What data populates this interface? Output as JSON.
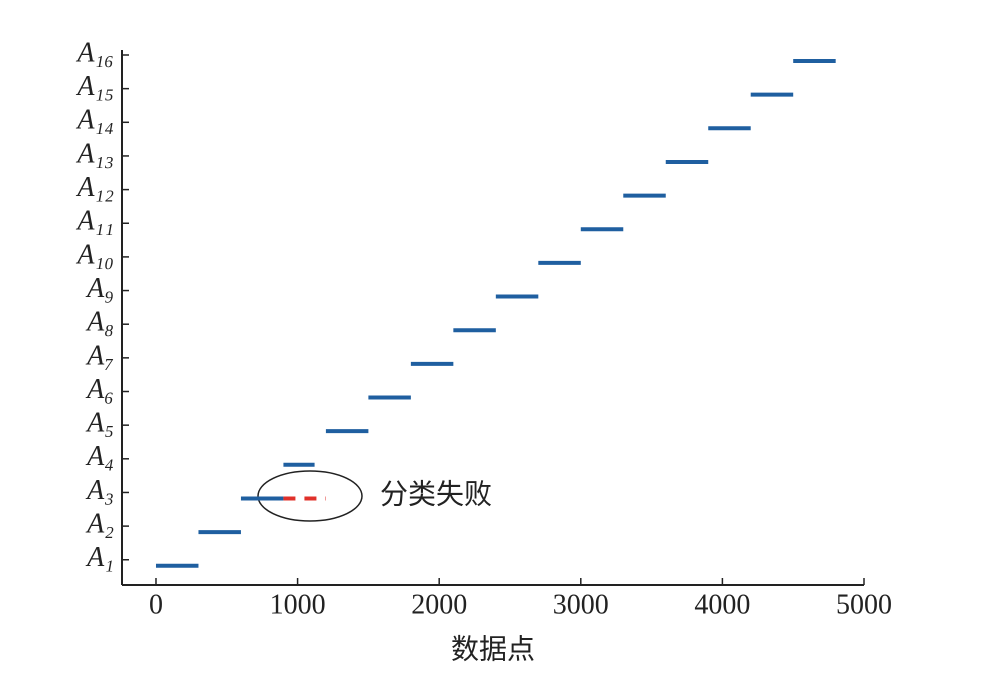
{
  "chart_data": {
    "type": "segments",
    "x_label": "数据点",
    "annotation": "分类失败",
    "xlim": [
      -240,
      5000
    ],
    "xticks": [
      0,
      1000,
      2000,
      3000,
      4000,
      5000
    ],
    "ylim": [
      0.25,
      16
    ],
    "yticks": [
      {
        "value": 1,
        "label": "A₁"
      },
      {
        "value": 2,
        "label": "A₂"
      },
      {
        "value": 3,
        "label": "A₃"
      },
      {
        "value": 4,
        "label": "A₄"
      },
      {
        "value": 5,
        "label": "A₅"
      },
      {
        "value": 6,
        "label": "A₆"
      },
      {
        "value": 7,
        "label": "A₇"
      },
      {
        "value": 8,
        "label": "A₈"
      },
      {
        "value": 9,
        "label": "A₉"
      },
      {
        "value": 10,
        "label": "A₁₀"
      },
      {
        "value": 11,
        "label": "A₁₁"
      },
      {
        "value": 12,
        "label": "A₁₂"
      },
      {
        "value": 13,
        "label": "A₁₃"
      },
      {
        "value": 14,
        "label": "A₁₄"
      },
      {
        "value": 15,
        "label": "A₁₅"
      },
      {
        "value": 16,
        "label": "A₁₆"
      }
    ],
    "segments": [
      {
        "x": [
          0,
          300
        ],
        "y": 1,
        "color": "#1f5fa0",
        "style": "solid"
      },
      {
        "x": [
          300,
          600
        ],
        "y": 2,
        "color": "#1f5fa0",
        "style": "solid"
      },
      {
        "x": [
          600,
          900
        ],
        "y": 3,
        "color": "#1f5fa0",
        "style": "solid"
      },
      {
        "x": [
          900,
          1200
        ],
        "y": 3,
        "color": "#e0302a",
        "style": "dashed"
      },
      {
        "x": [
          900,
          1120
        ],
        "y": 4,
        "color": "#1f5fa0",
        "style": "solid"
      },
      {
        "x": [
          1200,
          1500
        ],
        "y": 5,
        "color": "#1f5fa0",
        "style": "solid"
      },
      {
        "x": [
          1500,
          1800
        ],
        "y": 6,
        "color": "#1f5fa0",
        "style": "solid"
      },
      {
        "x": [
          1800,
          2100
        ],
        "y": 7,
        "color": "#1f5fa0",
        "style": "solid"
      },
      {
        "x": [
          2100,
          2400
        ],
        "y": 8,
        "color": "#1f5fa0",
        "style": "solid"
      },
      {
        "x": [
          2400,
          2700
        ],
        "y": 9,
        "color": "#1f5fa0",
        "style": "solid"
      },
      {
        "x": [
          2700,
          3000
        ],
        "y": 10,
        "color": "#1f5fa0",
        "style": "solid"
      },
      {
        "x": [
          3000,
          3300
        ],
        "y": 11,
        "color": "#1f5fa0",
        "style": "solid"
      },
      {
        "x": [
          3300,
          3600
        ],
        "y": 12,
        "color": "#1f5fa0",
        "style": "solid"
      },
      {
        "x": [
          3600,
          3900
        ],
        "y": 13,
        "color": "#1f5fa0",
        "style": "solid"
      },
      {
        "x": [
          3900,
          4200
        ],
        "y": 14,
        "color": "#1f5fa0",
        "style": "solid"
      },
      {
        "x": [
          4200,
          4500
        ],
        "y": 15,
        "color": "#1f5fa0",
        "style": "solid"
      },
      {
        "x": [
          4500,
          4800
        ],
        "y": 16,
        "color": "#1f5fa0",
        "style": "solid"
      }
    ]
  }
}
